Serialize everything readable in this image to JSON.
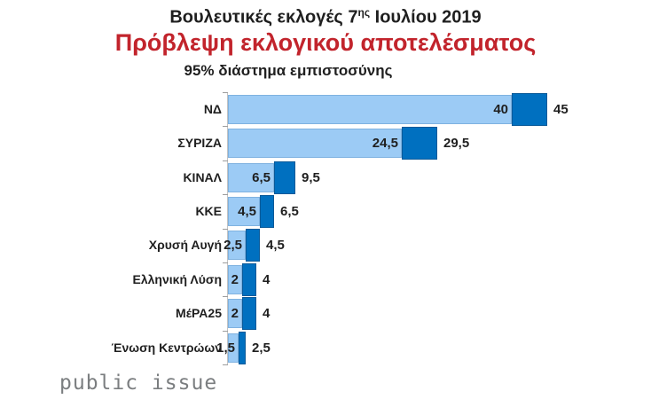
{
  "header": {
    "title_prefix": "Βουλευτικές εκλογές 7",
    "title_sup": "ης",
    "title_suffix": " Ιουλίου 2019",
    "subtitle": "Πρόβλεψη εκλογικού αποτελέσματος",
    "caption": "95% διάστημα εμπιστοσύνης",
    "title_color": "#1f1f1f",
    "subtitle_color": "#c2242c"
  },
  "chart_data": {
    "type": "bar",
    "orientation": "horizontal",
    "title": "Βουλευτικές εκλογές 7ης Ιουλίου 2019",
    "subtitle": "Πρόβλεψη εκλογικού αποτελέσματος",
    "caption": "95% διάστημα εμπιστοσύνης",
    "categories": [
      "ΝΔ",
      "ΣΥΡΙΖΑ",
      "ΚΙΝΑΛ",
      "ΚΚΕ",
      "Χρυσή Αυγή",
      "Ελληνική Λύση",
      "ΜέΡΑ25",
      "Ένωση Κεντρώων"
    ],
    "series": [
      {
        "name": "lower-bound",
        "color": "#9ccbf5",
        "values": [
          40,
          24.5,
          6.5,
          4.5,
          2.5,
          2,
          2,
          1.5
        ]
      },
      {
        "name": "upper-bound",
        "color": "#0070c0",
        "values": [
          45,
          29.5,
          9.5,
          6.5,
          4.5,
          4,
          4,
          2.5
        ]
      }
    ],
    "value_labels": [
      [
        "40",
        "45"
      ],
      [
        "24,5",
        "29,5"
      ],
      [
        "6,5",
        "9,5"
      ],
      [
        "4,5",
        "6,5"
      ],
      [
        "2,5",
        "4,5"
      ],
      [
        "2",
        "4"
      ],
      [
        "2",
        "4"
      ],
      [
        "1,5",
        "2,5"
      ]
    ],
    "bar_semantics": "light bar spans 0 to lower bound; dark segment spans lower to upper bound of 95% confidence interval",
    "x_axis": {
      "min": 0,
      "max": 57,
      "labels_visible": false,
      "gridlines": false
    },
    "legend": {
      "visible": false
    }
  },
  "footer": {
    "logo_text": "public issue",
    "logo_color": "#7b7e80"
  }
}
